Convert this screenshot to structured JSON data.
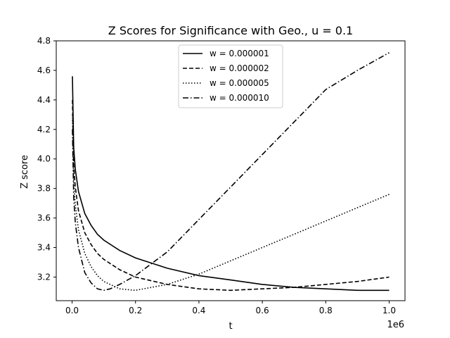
{
  "chart_data": {
    "type": "line",
    "title": "Z Scores for Significance with Geo., u = 0.1",
    "xlabel": "t",
    "ylabel": "Z score",
    "x_offset_label": "1e6",
    "xlim": [
      -0.05,
      1.05
    ],
    "ylim": [
      3.04,
      4.8
    ],
    "xticks": [
      0.0,
      0.2,
      0.4,
      0.6,
      0.8,
      1.0
    ],
    "xtick_labels": [
      "0.0",
      "0.2",
      "0.4",
      "0.6",
      "0.8",
      "1.0"
    ],
    "yticks": [
      3.2,
      3.4,
      3.6,
      3.8,
      4.0,
      4.2,
      4.4,
      4.6,
      4.8
    ],
    "ytick_labels": [
      "3.2",
      "3.4",
      "3.6",
      "3.8",
      "4.0",
      "4.2",
      "4.4",
      "4.6",
      "4.8"
    ],
    "grid": false,
    "legend_position": "top-center",
    "line_color": "#000000",
    "series": [
      {
        "name": "w = 0.000001",
        "dash": "solid",
        "x": [
          0.001,
          0.005,
          0.01,
          0.02,
          0.04,
          0.06,
          0.08,
          0.1,
          0.15,
          0.2,
          0.3,
          0.4,
          0.5,
          0.6,
          0.7,
          0.8,
          0.9,
          1.0
        ],
        "y": [
          4.56,
          4.08,
          3.93,
          3.78,
          3.63,
          3.55,
          3.49,
          3.45,
          3.38,
          3.33,
          3.26,
          3.21,
          3.18,
          3.15,
          3.13,
          3.12,
          3.11,
          3.11
        ]
      },
      {
        "name": "w = 0.000002",
        "dash": "dashed",
        "x": [
          0.001,
          0.005,
          0.01,
          0.02,
          0.04,
          0.06,
          0.08,
          0.1,
          0.15,
          0.2,
          0.3,
          0.4,
          0.5,
          0.6,
          0.7,
          0.8,
          0.9,
          1.0
        ],
        "y": [
          4.4,
          3.96,
          3.81,
          3.65,
          3.5,
          3.42,
          3.36,
          3.32,
          3.25,
          3.2,
          3.15,
          3.12,
          3.11,
          3.12,
          3.13,
          3.15,
          3.17,
          3.2
        ]
      },
      {
        "name": "w = 0.000005",
        "dash": "dotted",
        "x": [
          0.001,
          0.005,
          0.01,
          0.02,
          0.04,
          0.06,
          0.08,
          0.1,
          0.15,
          0.2,
          0.3,
          0.4,
          0.5,
          0.6,
          0.7,
          0.8,
          0.9,
          1.0
        ],
        "y": [
          4.3,
          3.84,
          3.69,
          3.52,
          3.36,
          3.27,
          3.21,
          3.17,
          3.12,
          3.11,
          3.15,
          3.22,
          3.31,
          3.4,
          3.49,
          3.58,
          3.67,
          3.76
        ]
      },
      {
        "name": "w = 0.000010",
        "dash": "dashdot",
        "x": [
          0.001,
          0.005,
          0.01,
          0.02,
          0.04,
          0.06,
          0.08,
          0.1,
          0.12,
          0.15,
          0.2,
          0.3,
          0.4,
          0.5,
          0.6,
          0.7,
          0.8,
          0.9,
          1.0
        ],
        "y": [
          4.2,
          3.74,
          3.57,
          3.4,
          3.23,
          3.16,
          3.12,
          3.11,
          3.12,
          3.15,
          3.21,
          3.37,
          3.59,
          3.81,
          4.03,
          4.25,
          4.47,
          4.6,
          4.72
        ]
      }
    ]
  }
}
